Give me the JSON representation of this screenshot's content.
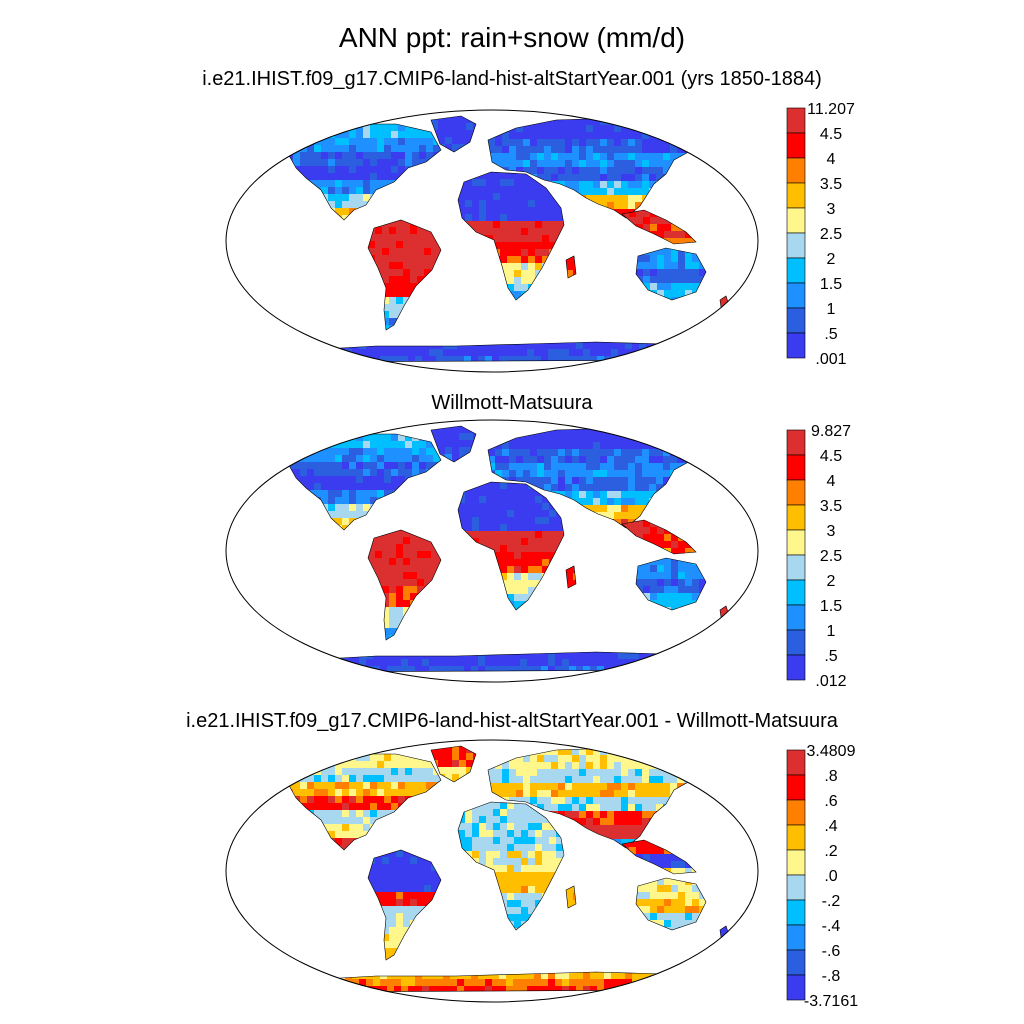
{
  "title": "ANN ppt: rain+snow (mm/d)",
  "panels": [
    {
      "subtitle": "i.e21.IHIST.f09_g17.CMIP6-land-hist-altStartYear.001 (yrs 1850-1884)",
      "colorbar_labels": [
        "11.207",
        "4.5",
        "4",
        "3.5",
        "3",
        "2.5",
        "2",
        "1.5",
        "1",
        ".5",
        ".001"
      ]
    },
    {
      "subtitle": "Willmott-Matsuura",
      "colorbar_labels": [
        "9.827",
        "4.5",
        "4",
        "3.5",
        "3",
        "2.5",
        "2",
        "1.5",
        "1",
        ".5",
        ".012"
      ]
    },
    {
      "subtitle": "i.e21.IHIST.f09_g17.CMIP6-land-hist-altStartYear.001 - Willmott-Matsuura",
      "colorbar_labels": [
        "3.4809",
        ".8",
        ".6",
        ".4",
        ".2",
        ".0",
        "-.2",
        "-.4",
        "-.6",
        "-.8",
        "-3.7161"
      ]
    }
  ],
  "colors": {
    "scale": [
      "#dc2f2f",
      "#ff0000",
      "#ff7f00",
      "#ffbf00",
      "#fff68c",
      "#a8d8f0",
      "#00bfff",
      "#1e90ff",
      "#2b5fe0",
      "#3b3bef"
    ]
  }
}
